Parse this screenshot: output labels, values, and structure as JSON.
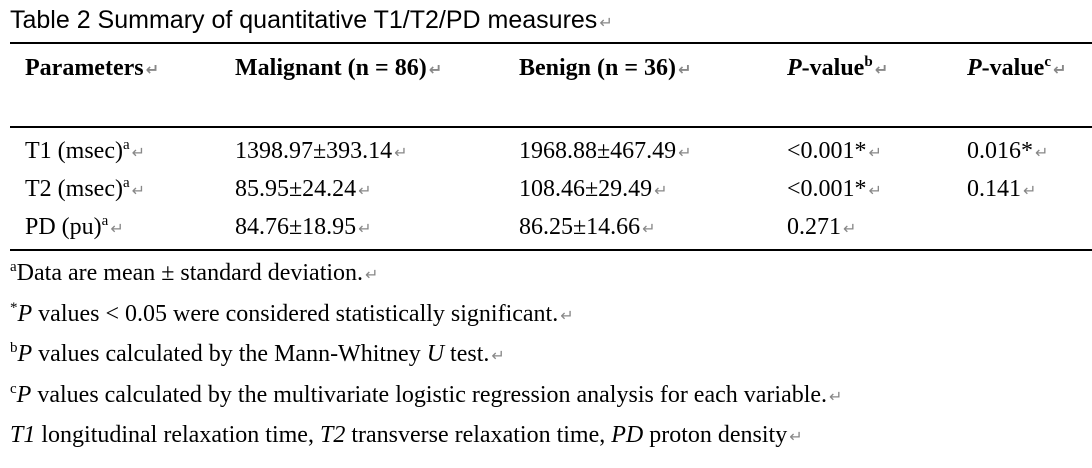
{
  "title": "Table 2 Summary of quantitative T1/T2/PD measures",
  "table": {
    "header": [
      [
        {
          "text": "Parameters"
        }
      ],
      [
        {
          "text": "Malignant (n = 86)"
        }
      ],
      [
        {
          "text": "Benign (n = 36)"
        }
      ],
      [
        {
          "italic": "P"
        },
        {
          "text": "-value"
        },
        {
          "sup": "b"
        }
      ],
      [
        {
          "italic": "P"
        },
        {
          "text": "-value"
        },
        {
          "sup": "c"
        }
      ]
    ],
    "rows": [
      [
        [
          {
            "text": "T1 (msec)"
          },
          {
            "sup": "a"
          }
        ],
        [
          {
            "text": "1398.97±393.14"
          }
        ],
        [
          {
            "text": "1968.88±467.49"
          }
        ],
        [
          {
            "text": "<0.001*"
          }
        ],
        [
          {
            "text": "0.016*"
          }
        ]
      ],
      [
        [
          {
            "text": "T2 (msec)"
          },
          {
            "sup": "a"
          }
        ],
        [
          {
            "text": "85.95±24.24"
          }
        ],
        [
          {
            "text": "108.46±29.49"
          }
        ],
        [
          {
            "text": "<0.001*"
          }
        ],
        [
          {
            "text": "0.141"
          }
        ]
      ],
      [
        [
          {
            "text": "PD (pu)"
          },
          {
            "sup": "a"
          }
        ],
        [
          {
            "text": "84.76±18.95"
          }
        ],
        [
          {
            "text": "86.25±14.66"
          }
        ],
        [
          {
            "text": "0.271"
          }
        ]
      ]
    ]
  },
  "footnotes": [
    [
      {
        "sup": "a"
      },
      {
        "text": "Data are mean ± standard deviation."
      }
    ],
    [
      {
        "sup": "*"
      },
      {
        "italic": "P"
      },
      {
        "text": " values < 0.05 were considered statistically significant."
      }
    ],
    [
      {
        "sup": "b"
      },
      {
        "italic": "P"
      },
      {
        "text": " values calculated by the Mann-Whitney "
      },
      {
        "italic": "U"
      },
      {
        "text": " test."
      }
    ],
    [
      {
        "sup": "c"
      },
      {
        "italic": "P"
      },
      {
        "text": " values calculated by the multivariate logistic regression analysis for each variable."
      }
    ],
    [
      {
        "italic": "T1"
      },
      {
        "text": " longitudinal relaxation time, "
      },
      {
        "italic": "T2"
      },
      {
        "text": " transverse relaxation time, "
      },
      {
        "italic": "PD"
      },
      {
        "text": " proton density"
      }
    ]
  ]
}
